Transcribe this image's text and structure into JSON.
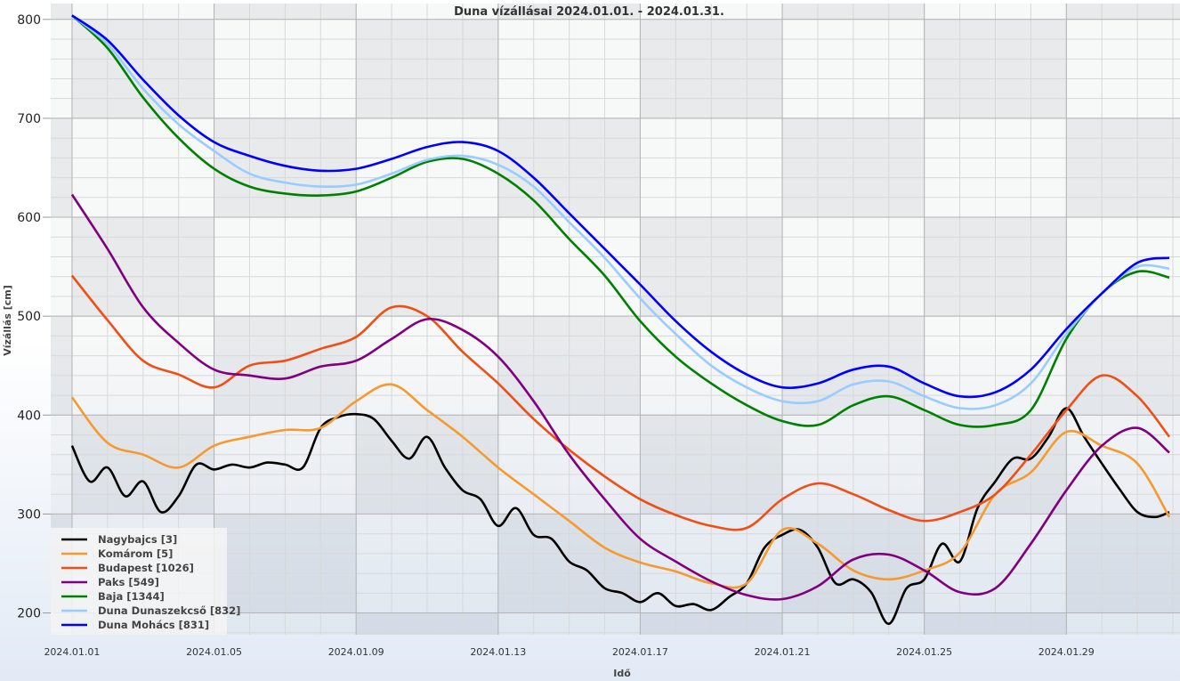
{
  "chart_data": {
    "type": "line",
    "title": "Duna vízállásai 2024.01.01. - 2024.01.31.",
    "xlabel": "Idő",
    "ylabel": "Vízállás [cm]",
    "x_unit": "days since 2024.01.01",
    "xlim": [
      -0.6,
      31.2
    ],
    "ylim": [
      178,
      816
    ],
    "yticks": [
      200,
      300,
      400,
      500,
      600,
      700,
      800
    ],
    "xticks": [
      {
        "day": 0,
        "label": "2024.01.01"
      },
      {
        "day": 4,
        "label": "2024.01.05"
      },
      {
        "day": 8,
        "label": "2024.01.09"
      },
      {
        "day": 12,
        "label": "2024.01.13"
      },
      {
        "day": 16,
        "label": "2024.01.17"
      },
      {
        "day": 20,
        "label": "2024.01.21"
      },
      {
        "day": 24,
        "label": "2024.01.25"
      },
      {
        "day": 28,
        "label": "2024.01.29"
      }
    ],
    "grid": true,
    "legend_position": "bottom-left",
    "series": [
      {
        "name": "Nagybajcs [3]",
        "color": "#000000",
        "x": [
          0,
          0.5,
          1,
          1.5,
          2,
          2.5,
          3,
          3.5,
          4,
          4.5,
          5,
          5.5,
          6,
          6.5,
          7,
          7.5,
          8,
          8.5,
          9,
          9.5,
          10,
          10.5,
          11,
          11.5,
          12,
          12.5,
          13,
          13.5,
          14,
          14.5,
          15,
          15.5,
          16,
          16.5,
          17,
          17.5,
          18,
          18.5,
          19,
          19.5,
          20,
          20.5,
          21,
          21.5,
          22,
          22.5,
          23,
          23.5,
          24,
          24.5,
          25,
          25.5,
          26,
          26.5,
          27,
          27.5,
          28,
          28.5,
          29,
          29.5,
          30,
          30.5,
          30.9
        ],
        "values": [
          369,
          333,
          347,
          318,
          333,
          302,
          318,
          350,
          345,
          350,
          347,
          352,
          350,
          347,
          387,
          398,
          401,
          396,
          374,
          356,
          378,
          347,
          324,
          315,
          288,
          306,
          279,
          275,
          252,
          243,
          225,
          220,
          211,
          220,
          207,
          209,
          203,
          216,
          230,
          266,
          279,
          284,
          266,
          230,
          234,
          221,
          189,
          225,
          234,
          270,
          252,
          306,
          333,
          356,
          356,
          378,
          407,
          378,
          351,
          325,
          302,
          297,
          302
        ]
      },
      {
        "name": "Komárom [5]",
        "color": "#f59a2e",
        "values": [
          418,
          372,
          360,
          347,
          369,
          378,
          385,
          387,
          414,
          431,
          405,
          378,
          347,
          320,
          293,
          266,
          251,
          242,
          230,
          230,
          284,
          270,
          243,
          234,
          243,
          261,
          320,
          342,
          383,
          369,
          351,
          297
        ]
      },
      {
        "name": "Budapest [1026]",
        "color": "#f04e14",
        "values": [
          541,
          496,
          455,
          441,
          428,
          450,
          455,
          467,
          479,
          509,
          500,
          464,
          432,
          396,
          365,
          338,
          315,
          299,
          288,
          286,
          315,
          331,
          320,
          304,
          293,
          302,
          320,
          360,
          405,
          440,
          419,
          378
        ]
      },
      {
        "name": "Paks [549]",
        "color": "#800080",
        "values": [
          623,
          568,
          509,
          473,
          446,
          440,
          437,
          449,
          455,
          477,
          497,
          486,
          459,
          414,
          360,
          315,
          275,
          252,
          232,
          218,
          214,
          227,
          254,
          259,
          243,
          221,
          225,
          270,
          324,
          369,
          387,
          362
        ]
      },
      {
        "name": "Baja [1344]",
        "color": "#008000",
        "values": [
          804,
          771,
          721,
          680,
          649,
          631,
          624,
          622,
          626,
          640,
          656,
          659,
          644,
          617,
          578,
          541,
          495,
          459,
          432,
          410,
          394,
          390,
          410,
          419,
          405,
          390,
          390,
          405,
          477,
          523,
          545,
          539
        ]
      },
      {
        "name": "Duna Dunaszekcső [832]",
        "color": "#99ccff",
        "values": [
          804,
          775,
          730,
          694,
          667,
          644,
          635,
          631,
          633,
          644,
          658,
          662,
          653,
          631,
          595,
          559,
          518,
          482,
          450,
          428,
          414,
          414,
          431,
          434,
          419,
          407,
          410,
          432,
          482,
          523,
          550,
          548
        ]
      },
      {
        "name": "Duna Mohács [831]",
        "color": "#0000ff",
        "values": [
          804,
          779,
          739,
          703,
          676,
          662,
          652,
          647,
          649,
          659,
          671,
          676,
          667,
          640,
          604,
          568,
          532,
          495,
          464,
          441,
          428,
          432,
          446,
          449,
          432,
          419,
          423,
          446,
          487,
          523,
          554,
          559
        ]
      }
    ],
    "daily_x": [
      0,
      1,
      2,
      3,
      4,
      5,
      6,
      7,
      8,
      9,
      10,
      11,
      12,
      13,
      14,
      15,
      16,
      17,
      18,
      19,
      20,
      21,
      22,
      23,
      24,
      25,
      26,
      27,
      28,
      29,
      30,
      30.9
    ]
  }
}
